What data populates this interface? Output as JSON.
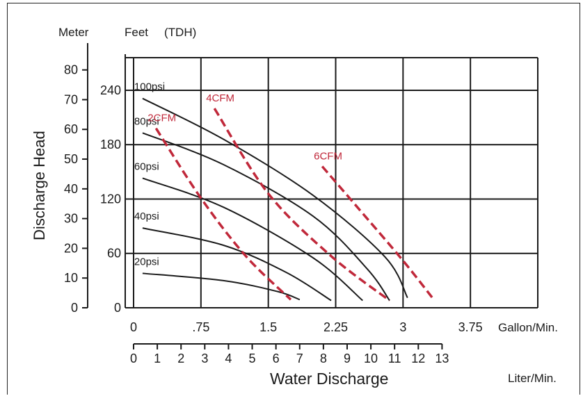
{
  "chart_data": {
    "type": "line",
    "ylabel": "Discharge Head",
    "xlabel": "Water Discharge",
    "y_unit_labels": [
      "Meter",
      "Feet",
      "(TDH)"
    ],
    "x_unit_primary": "Gallon/Min.",
    "x_unit_secondary": "Liter/Min.",
    "xlim": [
      0,
      4.5
    ],
    "ylim_feet": [
      0,
      276
    ],
    "yticks_feet": [
      "0",
      "60",
      "120",
      "180",
      "240"
    ],
    "yticks_meter": [
      "0",
      "10",
      "20",
      "30",
      "40",
      "50",
      "60",
      "70",
      "80"
    ],
    "xticks_gpm": [
      "0",
      ".75",
      "1.5",
      "2.25",
      "3",
      "3.75"
    ],
    "xticks_lpm": [
      "0",
      "1",
      "2",
      "3",
      "4",
      "5",
      "6",
      "7",
      "8",
      "9",
      "10",
      "11",
      "12",
      "13"
    ],
    "grid": true,
    "series": [
      {
        "name": "100psi",
        "kind": "pressure",
        "x": [
          0.1,
          1.0,
          2.0,
          2.8,
          3.05
        ],
        "y": [
          231,
          186,
          124,
          56,
          11
        ]
      },
      {
        "name": "80psi",
        "kind": "pressure",
        "x": [
          0.1,
          1.0,
          2.0,
          2.6,
          2.85
        ],
        "y": [
          193,
          158,
          101,
          43,
          8
        ]
      },
      {
        "name": "60psi",
        "kind": "pressure",
        "x": [
          0.1,
          1.0,
          2.0,
          2.55
        ],
        "y": [
          143,
          111,
          55,
          8
        ]
      },
      {
        "name": "40psi",
        "kind": "pressure",
        "x": [
          0.1,
          1.0,
          1.7,
          2.2
        ],
        "y": [
          88,
          69,
          39,
          8
        ]
      },
      {
        "name": "20psi",
        "kind": "pressure",
        "x": [
          0.1,
          1.0,
          1.6,
          1.85
        ],
        "y": [
          38,
          30,
          18,
          9
        ]
      },
      {
        "name": "2CFM",
        "kind": "air",
        "x": [
          0.25,
          0.75,
          1.25,
          1.75
        ],
        "y": [
          198,
          121,
          57,
          9
        ]
      },
      {
        "name": "4CFM",
        "kind": "air",
        "x": [
          0.9,
          1.5,
          2.2,
          2.85
        ],
        "y": [
          220,
          126,
          57,
          8
        ]
      },
      {
        "name": "6CFM",
        "kind": "air",
        "x": [
          2.1,
          2.5,
          3.0,
          3.35
        ],
        "y": [
          156,
          110,
          52,
          8
        ]
      }
    ],
    "colors": {
      "pressure": "#1a1a1a",
      "air": "#c0283a",
      "grid": "#1a1a1a"
    }
  }
}
